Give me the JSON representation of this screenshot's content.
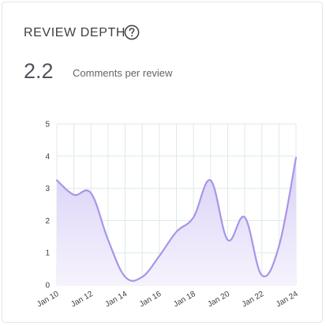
{
  "header": {
    "title": "REVIEW DEPTH",
    "help_icon": "help-circle-icon"
  },
  "metric": {
    "value": "2.2",
    "label": "Comments per review"
  },
  "colors": {
    "line": "#a796e8",
    "fill_top": "#d9d0f7",
    "fill_bottom": "#f6f3fd",
    "grid": "#dcebe6"
  },
  "chart_data": {
    "type": "area",
    "title": "",
    "xlabel": "",
    "ylabel": "",
    "ylim": [
      0,
      5
    ],
    "y_ticks": [
      "0",
      "1",
      "2",
      "3",
      "4",
      "5"
    ],
    "x_tick_labels": [
      "Jan 10",
      "Jan 12",
      "Jan 14",
      "Jan 16",
      "Jan 18",
      "Jan 20",
      "Jan 22",
      "Jan 24"
    ],
    "x": [
      "Jan 10",
      "Jan 11",
      "Jan 12",
      "Jan 13",
      "Jan 14",
      "Jan 15",
      "Jan 16",
      "Jan 17",
      "Jan 18",
      "Jan 19",
      "Jan 20",
      "Jan 21",
      "Jan 22",
      "Jan 23",
      "Jan 24"
    ],
    "values": [
      3.25,
      2.8,
      2.85,
      1.4,
      0.25,
      0.25,
      0.9,
      1.65,
      2.1,
      3.25,
      1.4,
      2.1,
      0.3,
      1.2,
      3.95
    ],
    "grid": true
  }
}
